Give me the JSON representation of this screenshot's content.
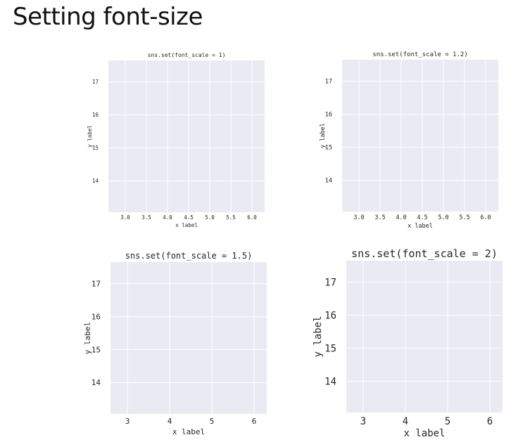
{
  "slide": {
    "title": "Setting font-size"
  },
  "style": {
    "panel_bg": "#eaeaf2",
    "grid": "#ffffff",
    "text": "#262626"
  },
  "chart_data": [
    {
      "type": "scatter",
      "title": "sns.set(font_scale = 1)",
      "xlabel": "x label",
      "ylabel": "y label",
      "xticks": [
        "3.0",
        "3.5",
        "4.0",
        "4.5",
        "5.0",
        "5.5",
        "6.0"
      ],
      "yticks": [
        "14",
        "15",
        "16",
        "17"
      ],
      "xlim": [
        2.6,
        6.3
      ],
      "ylim": [
        13.05,
        17.65
      ],
      "grid": true,
      "points": []
    },
    {
      "type": "scatter",
      "title": "sns.set(font_scale = 1.2)",
      "xlabel": "x label",
      "ylabel": "y label",
      "xticks": [
        "3.0",
        "3.5",
        "4.0",
        "4.5",
        "5.0",
        "5.5",
        "6.0"
      ],
      "yticks": [
        "14",
        "15",
        "16",
        "17"
      ],
      "xlim": [
        2.6,
        6.3
      ],
      "ylim": [
        13.05,
        17.65
      ],
      "grid": true,
      "points": []
    },
    {
      "type": "scatter",
      "title": "sns.set(font_scale = 1.5)",
      "xlabel": "x label",
      "ylabel": "y label",
      "xticks": [
        "3",
        "4",
        "5",
        "6"
      ],
      "yticks": [
        "14",
        "15",
        "16",
        "17"
      ],
      "xlim": [
        2.6,
        6.3
      ],
      "ylim": [
        13.05,
        17.65
      ],
      "grid": true,
      "points": []
    },
    {
      "type": "scatter",
      "title": "sns.set(font_scale = 2)",
      "xlabel": "x label",
      "ylabel": "y label",
      "xticks": [
        "3",
        "4",
        "5",
        "6"
      ],
      "yticks": [
        "14",
        "15",
        "16",
        "17"
      ],
      "xlim": [
        2.6,
        6.3
      ],
      "ylim": [
        13.05,
        17.65
      ],
      "grid": true,
      "points": []
    }
  ]
}
